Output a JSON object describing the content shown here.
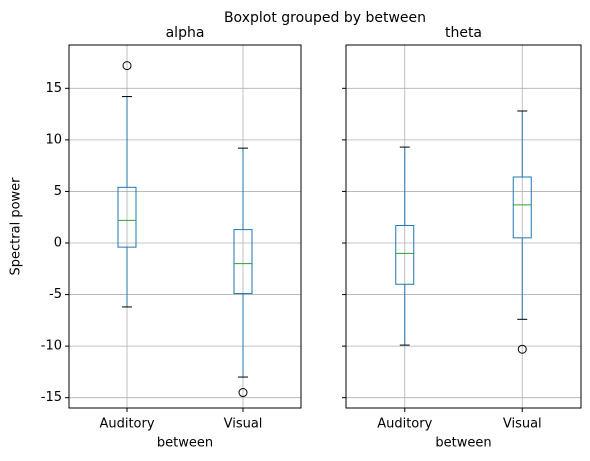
{
  "title": "Boxplot grouped by between",
  "chart_data": [
    {
      "type": "box",
      "title": "alpha",
      "xlabel": "between",
      "ylabel": "Spectral power",
      "categories": [
        "Auditory",
        "Visual"
      ],
      "boxes": [
        {
          "whislo": -6.2,
          "q1": -0.4,
          "med": 2.2,
          "q3": 5.4,
          "whishi": 14.2,
          "fliers": [
            17.2
          ]
        },
        {
          "whislo": -13.0,
          "q1": -4.9,
          "med": -2.0,
          "q3": 1.3,
          "whishi": 9.2,
          "fliers": [
            -14.5
          ]
        }
      ],
      "ylim": [
        -16,
        19.2
      ],
      "yticks": [
        -15,
        -10,
        -5,
        0,
        5,
        10,
        15
      ],
      "show_ytick_labels": true,
      "grid": true,
      "box_color": "#1f77b4",
      "median_color": "#2ca02c"
    },
    {
      "type": "box",
      "title": "theta",
      "xlabel": "between",
      "categories": [
        "Auditory",
        "Visual"
      ],
      "boxes": [
        {
          "whislo": -9.9,
          "q1": -4.0,
          "med": -1.0,
          "q3": 1.7,
          "whishi": 9.3,
          "fliers": []
        },
        {
          "whislo": -7.4,
          "q1": 0.5,
          "med": 3.7,
          "q3": 6.4,
          "whishi": 12.8,
          "fliers": [
            -10.3
          ]
        }
      ],
      "ylim": [
        -16,
        19.2
      ],
      "yticks": [
        -15,
        -10,
        -5,
        0,
        5,
        10,
        15
      ],
      "show_ytick_labels": false,
      "grid": true,
      "box_color": "#1f77b4",
      "median_color": "#2ca02c"
    }
  ]
}
